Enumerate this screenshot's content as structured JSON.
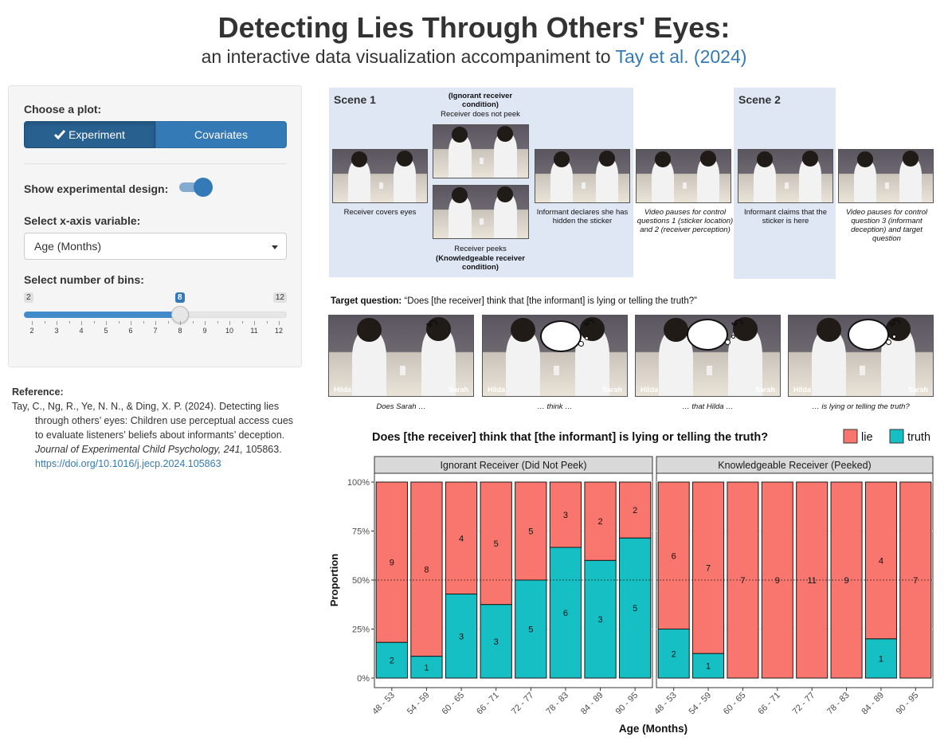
{
  "header": {
    "title": "Detecting Lies Through Others' Eyes:",
    "subtitle_prefix": "an interactive data visualization accompaniment to ",
    "subtitle_link": "Tay et al. (2024)"
  },
  "sidebar": {
    "choose_plot_label": "Choose a plot:",
    "plot_buttons": [
      {
        "label": "Experiment",
        "active": true
      },
      {
        "label": "Covariates",
        "active": false
      }
    ],
    "show_design_label": "Show experimental design:",
    "show_design_on": true,
    "xaxis_label": "Select x-axis variable:",
    "xaxis_value": "Age (Months)",
    "bins_label": "Select number of bins:",
    "slider": {
      "min": 2,
      "max": 12,
      "value": 8,
      "min_label": "2",
      "max_label": "12",
      "value_label": "8",
      "tick_labels": [
        "2",
        "3",
        "4",
        "5",
        "6",
        "7",
        "8",
        "9",
        "10",
        "11",
        "12"
      ]
    }
  },
  "reference": {
    "heading": "Reference:",
    "text_plain": "Tay, C., Ng, R., Ye, N. N., & Ding, X. P. (2024). Detecting lies through others’ eyes: Children use perceptual access cues to evaluate listeners’ beliefs about informants’ deception. ",
    "journal": "Journal of Experimental Child Psychology, 241,",
    "pages": " 105863. ",
    "doi": "https://doi.org/10.1016/j.jecp.2024.105863"
  },
  "design": {
    "scene1": "Scene 1",
    "scene2": "Scene 2",
    "cap_ignorant": "(Ignorant receiver condition)",
    "cap_no_peek": "Receiver does not peek",
    "cap_covers": "Receiver covers eyes",
    "cap_peeks": "Receiver peeks",
    "cap_knowledgeable": "(Knowledgeable receiver condition)",
    "cap_declares": "Informant declares she has hidden the sticker",
    "cap_pause1": "Video pauses for control questions 1 (sticker location) and 2 (receiver perception)",
    "cap_claims": "Informant claims that the sticker is here",
    "cap_pause2": "Video pauses for control question 3 (informant deception) and target question",
    "tq_label": "Target question:",
    "tq_text": " “Does [the receiver] think that [the informant] is lying or telling the truth?”",
    "name_left": "Hilda",
    "name_right": "Sarah",
    "tq_caps": [
      "Does Sarah …",
      "… think …",
      "… that Hilda …",
      "… is lying or telling the truth?"
    ]
  },
  "chart_data": {
    "type": "bar",
    "stacked": "proportion",
    "title": "Does [the receiver] think that [the informant] is lying or telling the truth?",
    "legend": [
      {
        "name": "lie",
        "color": "#f8766d"
      },
      {
        "name": "truth",
        "color": "#16bfc4"
      }
    ],
    "legend_position": "top-right",
    "xlabel": "Age (Months)",
    "ylabel": "Proportion",
    "yticks": [
      "0%",
      "25%",
      "50%",
      "75%",
      "100%"
    ],
    "ylim": [
      0,
      1
    ],
    "reference_line": 0.5,
    "categories": [
      "48 - 53",
      "54 - 59",
      "60 - 65",
      "66 - 71",
      "72 - 77",
      "78 - 83",
      "84 - 89",
      "90 - 95"
    ],
    "facets": [
      {
        "name": "Ignorant Receiver (Did Not Peek)",
        "series": [
          {
            "name": "lie",
            "values": [
              9,
              8,
              4,
              5,
              5,
              3,
              2,
              2
            ]
          },
          {
            "name": "truth",
            "values": [
              2,
              1,
              3,
              3,
              5,
              6,
              3,
              5
            ]
          }
        ]
      },
      {
        "name": "Knowledgeable Receiver (Peeked)",
        "series": [
          {
            "name": "lie",
            "values": [
              6,
              7,
              7,
              9,
              11,
              9,
              4,
              7
            ]
          },
          {
            "name": "truth",
            "values": [
              2,
              1,
              0,
              0,
              0,
              0,
              1,
              0
            ]
          }
        ]
      }
    ]
  }
}
